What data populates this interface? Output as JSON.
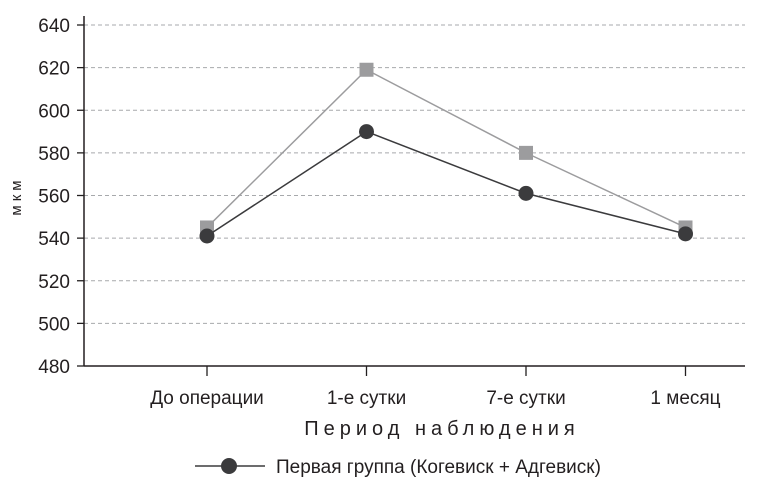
{
  "chart_data": {
    "type": "line",
    "title": "",
    "xlabel": "Период наблюдения",
    "ylabel": "мкм",
    "categories": [
      "До операции",
      "1-е сутки",
      "7-е сутки",
      "1 месяц"
    ],
    "ylim": [
      480,
      640
    ],
    "yticks": [
      480,
      500,
      520,
      540,
      560,
      580,
      600,
      620,
      640
    ],
    "grid": true,
    "legend_position": "bottom",
    "series": [
      {
        "name": "Первая группа (Когевиск + Адгевиск)",
        "values": [
          541,
          590,
          561,
          542
        ],
        "marker": "circle",
        "color": "#3b3b3d"
      },
      {
        "name": "",
        "values": [
          545,
          619,
          580,
          545
        ],
        "marker": "square",
        "color": "#9c9c9e"
      }
    ]
  }
}
